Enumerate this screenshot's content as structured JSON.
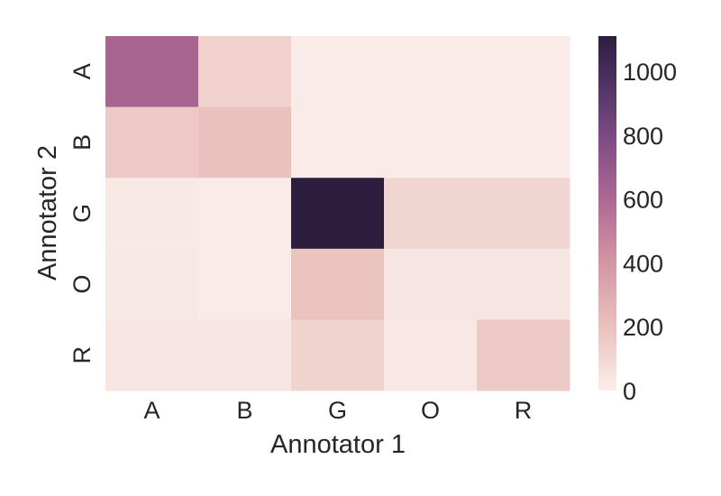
{
  "chart_data": {
    "type": "heatmap",
    "xlabel": "Annotator 1",
    "ylabel": "Annotator 2",
    "x_categories": [
      "A",
      "B",
      "G",
      "O",
      "R"
    ],
    "y_categories": [
      "A",
      "B",
      "G",
      "O",
      "R"
    ],
    "values": [
      [
        620,
        130,
        15,
        15,
        15
      ],
      [
        160,
        200,
        15,
        15,
        15
      ],
      [
        20,
        15,
        1110,
        110,
        110
      ],
      [
        25,
        15,
        190,
        40,
        40
      ],
      [
        40,
        40,
        120,
        30,
        160
      ]
    ],
    "colorbar": {
      "min": 0,
      "max": 1110,
      "ticks": [
        0,
        200,
        400,
        600,
        800,
        1000
      ]
    },
    "colors": {
      "low": "#faeeea",
      "high": "#2d1e3e"
    },
    "grid": false,
    "title": ""
  }
}
